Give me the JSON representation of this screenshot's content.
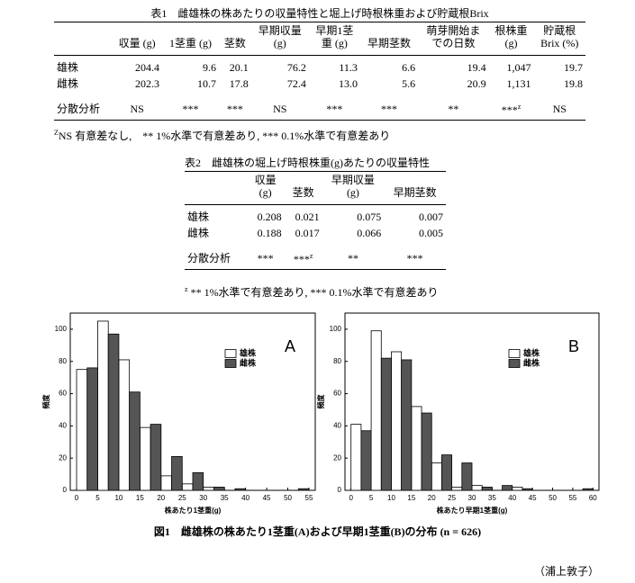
{
  "table1": {
    "title": "表1　雌雄株の株あたりの収量特性と堀上げ時根株重および貯蔵根Brix",
    "headers": [
      "収量 (g)",
      "1茎重 (g)",
      "茎数",
      "早期収量\n(g)",
      "早期1茎\n重 (g)",
      "早期茎数",
      "萌芽開始ま\nでの日数",
      "根株重\n(g)",
      "貯蔵根\nBrix (%)"
    ],
    "rows": [
      {
        "label": "雄株",
        "cells": [
          "204.4",
          "9.6",
          "20.1",
          "76.2",
          "11.3",
          "6.6",
          "19.4",
          "1,047",
          "19.7"
        ]
      },
      {
        "label": "雌株",
        "cells": [
          "202.3",
          "10.7",
          "17.8",
          "72.4",
          "13.0",
          "5.6",
          "20.9",
          "1,131",
          "19.8"
        ]
      }
    ],
    "anova": {
      "label": "分散分析",
      "cells": [
        "NS",
        "***",
        "***",
        "NS",
        "***",
        "***",
        "**",
        {
          "text": "***",
          "sup": "z"
        },
        "NS"
      ]
    },
    "note": {
      "sup": "Z",
      "text": "NS 有意差なし,　** 1%水準で有意差あり, *** 0.1%水準で有意差あり"
    }
  },
  "table2": {
    "title": "表2　雌雄株の堀上げ時根株重(g)あたりの収量特性",
    "headers": [
      "収量\n(g)",
      "茎数",
      "早期収量\n(g)",
      "早期茎数"
    ],
    "rows": [
      {
        "label": "雄株",
        "cells": [
          "0.208",
          "0.021",
          "0.075",
          "0.007"
        ]
      },
      {
        "label": "雌株",
        "cells": [
          "0.188",
          "0.017",
          "0.066",
          "0.005"
        ]
      }
    ],
    "anova": {
      "label": "分散分析",
      "cells": [
        "***",
        {
          "text": "***",
          "sup": "z"
        },
        "**",
        "***"
      ]
    },
    "note": {
      "sup": "z",
      "text": " ** 1%水準で有意差あり, *** 0.1%水準で有意差あり"
    }
  },
  "chart_data": [
    {
      "type": "histogram",
      "label": "A",
      "xlabel": "株あたり1茎重(g)",
      "ylabel": "頻度",
      "bins": [
        0,
        5,
        10,
        15,
        20,
        25,
        30,
        35,
        40,
        45,
        50,
        55
      ],
      "series": [
        {
          "name": "雄株",
          "color": "#ffffff",
          "values": [
            75,
            105,
            81,
            39,
            9,
            4,
            2,
            0,
            0,
            0,
            0
          ]
        },
        {
          "name": "雌株",
          "color": "#555555",
          "values": [
            76,
            97,
            61,
            41,
            21,
            11,
            2,
            1,
            0,
            0,
            1
          ]
        }
      ],
      "xlim": [
        -1.5,
        56.5
      ],
      "ylim": [
        0,
        110
      ],
      "xticks": [
        0,
        5,
        10,
        15,
        20,
        25,
        30,
        35,
        40,
        45,
        50,
        55
      ],
      "yticks": [
        0,
        20,
        40,
        60,
        80,
        100
      ],
      "legend": "upper right"
    },
    {
      "type": "histogram",
      "label": "B",
      "xlabel": "株あたり早期1茎重(g)",
      "ylabel": "頻度",
      "bins": [
        0,
        5,
        10,
        15,
        20,
        25,
        30,
        35,
        40,
        45,
        50,
        55,
        60
      ],
      "series": [
        {
          "name": "雄株",
          "color": "#ffffff",
          "values": [
            41,
            99,
            86,
            52,
            17,
            2,
            3,
            0,
            2,
            0,
            0,
            0
          ]
        },
        {
          "name": "雌株",
          "color": "#555555",
          "values": [
            37,
            82,
            81,
            48,
            22,
            17,
            2,
            3,
            1,
            0,
            0,
            1
          ]
        }
      ],
      "xlim": [
        -1.5,
        61.5
      ],
      "ylim": [
        0,
        110
      ],
      "xticks": [
        0,
        5,
        10,
        15,
        20,
        25,
        30,
        35,
        40,
        45,
        50,
        55,
        60
      ],
      "yticks": [
        0,
        20,
        40,
        60,
        80,
        100
      ],
      "legend": "upper right"
    }
  ],
  "figure": {
    "caption": "図1　雌雄株の株あたり1茎重(A)および早期1茎重(B)の分布 (n = 626)",
    "author": "（浦上敦子）"
  }
}
